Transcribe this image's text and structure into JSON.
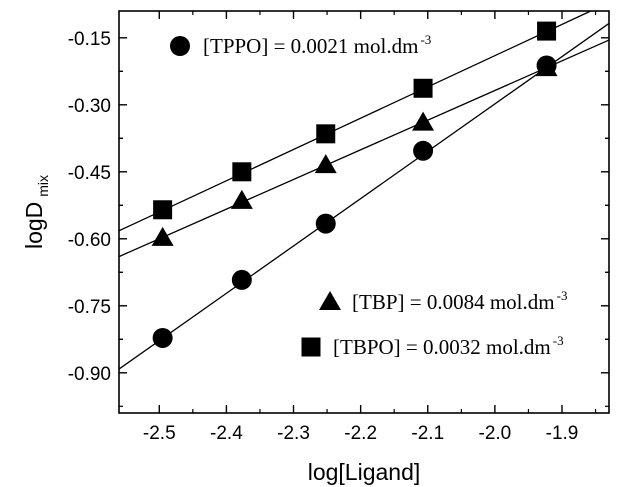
{
  "chart_data": {
    "type": "scatter",
    "xlabel": "log[Ligand]",
    "ylabel": "logD",
    "ylabel_sub": "mix",
    "xlim": [
      -2.56,
      -1.83
    ],
    "ylim": [
      -0.99,
      -0.09
    ],
    "x_ticks": [
      {
        "value": -2.5,
        "label": "-2.5"
      },
      {
        "value": -2.4,
        "label": "-2.4"
      },
      {
        "value": -2.3,
        "label": "-2.3"
      },
      {
        "value": -2.2,
        "label": "-2.2"
      },
      {
        "value": -2.1,
        "label": "-2.1"
      },
      {
        "value": -2.0,
        "label": "-2.0"
      },
      {
        "value": -1.9,
        "label": "-1.9"
      }
    ],
    "y_ticks": [
      {
        "value": -0.15,
        "label": "-0.15"
      },
      {
        "value": -0.3,
        "label": "-0.30"
      },
      {
        "value": -0.45,
        "label": "-0.45"
      },
      {
        "value": -0.6,
        "label": "-0.60"
      },
      {
        "value": -0.75,
        "label": "-0.75"
      },
      {
        "value": -0.9,
        "label": "-0.90"
      }
    ],
    "grid": false,
    "series": [
      {
        "name": "[TPPO] = 0.0021  mol.dm",
        "name_sup": "-3",
        "marker": "circle",
        "x": [
          -2.495,
          -2.377,
          -2.252,
          -2.107,
          -1.923
        ],
        "y": [
          -0.822,
          -0.692,
          -0.566,
          -0.403,
          -0.212
        ],
        "fit": {
          "slope": 1.06,
          "intercept": 1.822
        }
      },
      {
        "name": "[TBP] = 0.0084 mol.dm",
        "name_sup": "-3",
        "marker": "triangle",
        "x": [
          -2.495,
          -2.377,
          -2.252,
          -2.107,
          -1.923
        ],
        "y": [
          -0.598,
          -0.515,
          -0.435,
          -0.34,
          -0.218
        ],
        "fit": {
          "slope": 0.664,
          "intercept": 1.06
        }
      },
      {
        "name": "[TBPO] = 0.0032 mol.dm",
        "name_sup": "-3",
        "marker": "square",
        "x": [
          -2.495,
          -2.377,
          -2.252,
          -2.107,
          -1.923
        ],
        "y": [
          -0.535,
          -0.45,
          -0.365,
          -0.263,
          -0.135
        ],
        "fit": {
          "slope": 0.7,
          "intercept": 1.21
        }
      }
    ]
  }
}
